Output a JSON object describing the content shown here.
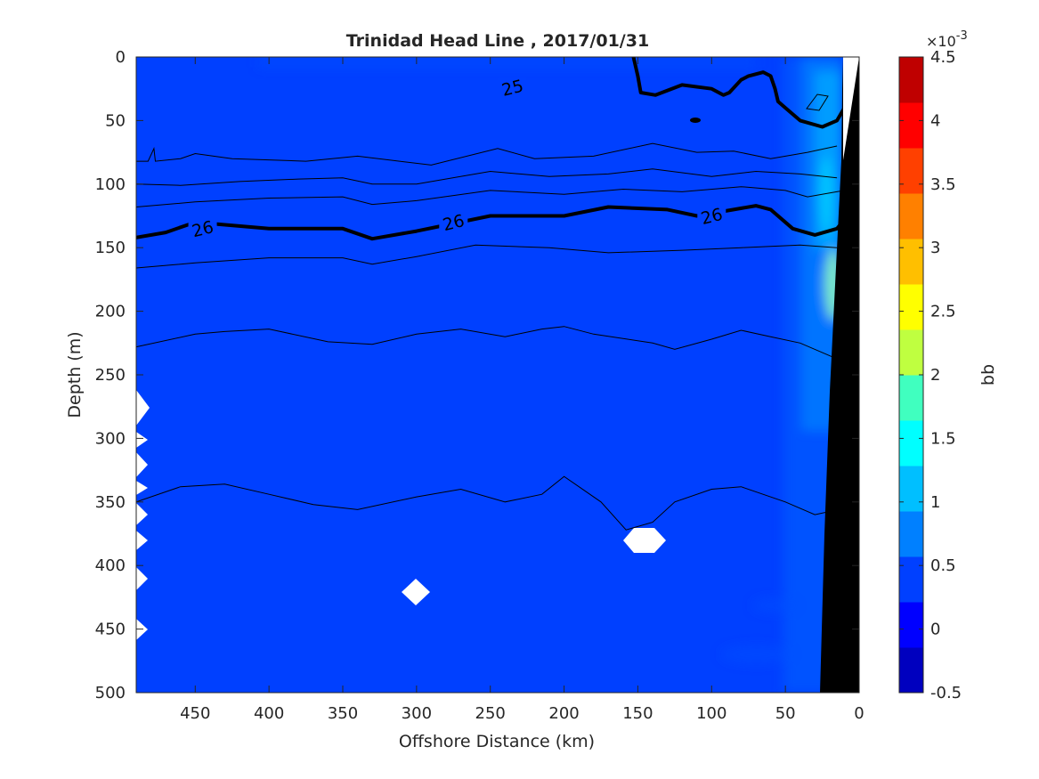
{
  "chart_data": {
    "type": "heatmap",
    "title": "Trinidad Head Line , 2017/01/31",
    "xlabel": "Offshore Distance (km)",
    "ylabel": "Depth (m)",
    "xlim": [
      490,
      0
    ],
    "ylim": [
      0,
      500
    ],
    "x_direction": "reversed",
    "y_direction": "reversed",
    "x_ticks": [
      "450",
      "400",
      "350",
      "300",
      "250",
      "200",
      "150",
      "100",
      "50",
      "0"
    ],
    "y_ticks": [
      "0",
      "50",
      "100",
      "150",
      "200",
      "250",
      "300",
      "350",
      "400",
      "450",
      "500"
    ],
    "background_value": 0.0003,
    "colormap": [
      "#00008F",
      "#0000BF",
      "#0000FF",
      "#0040FF",
      "#0080FF",
      "#00BFFF",
      "#00FFFF",
      "#40FFBF",
      "#80FF80",
      "#BFFF40",
      "#FFFF00",
      "#FFBF00",
      "#FF8000",
      "#FF4000",
      "#FF0000",
      "#BF0000",
      "#800000"
    ],
    "colorbar": {
      "label": "bb",
      "exponent_label": "×10",
      "exponent_power": "-3",
      "range": [
        -0.5,
        4.5
      ],
      "levels": 14,
      "ticks": [
        "4.5",
        "4",
        "3.5",
        "3",
        "2.5",
        "2",
        "1.5",
        "1",
        "0.5",
        "0",
        "-0.5"
      ]
    },
    "density_contours": [
      {
        "value": 25,
        "label": "25",
        "bold": true,
        "label_at": [
          235,
          24
        ],
        "points": [
          [
            153,
            0
          ],
          [
            150,
            15
          ],
          [
            148,
            28
          ],
          [
            138,
            30
          ],
          [
            120,
            22
          ],
          [
            100,
            25
          ],
          [
            92,
            30
          ],
          [
            88,
            28
          ],
          [
            80,
            18
          ],
          [
            75,
            15
          ],
          [
            65,
            12
          ],
          [
            60,
            15
          ],
          [
            57,
            25
          ],
          [
            55,
            35
          ],
          [
            50,
            40
          ],
          [
            40,
            50
          ],
          [
            25,
            55
          ],
          [
            15,
            50
          ],
          [
            10,
            40
          ]
        ]
      },
      {
        "value": 26,
        "label": "26",
        "bold": true,
        "label_at": [
          [
            445,
            135
          ],
          [
            275,
            130
          ],
          [
            100,
            125
          ]
        ],
        "points": [
          [
            490,
            142
          ],
          [
            470,
            138
          ],
          [
            450,
            130
          ],
          [
            400,
            135
          ],
          [
            350,
            135
          ],
          [
            330,
            143
          ],
          [
            300,
            137
          ],
          [
            250,
            125
          ],
          [
            200,
            125
          ],
          [
            170,
            118
          ],
          [
            130,
            120
          ],
          [
            110,
            125
          ],
          [
            70,
            117
          ],
          [
            60,
            120
          ],
          [
            45,
            135
          ],
          [
            30,
            140
          ],
          [
            15,
            135
          ],
          [
            10,
            128
          ]
        ]
      }
    ],
    "thin_contours": [
      [
        [
          490,
          82
        ],
        [
          482,
          82
        ],
        [
          478,
          72
        ],
        [
          477,
          82
        ],
        [
          460,
          80
        ],
        [
          450,
          76
        ],
        [
          425,
          80
        ],
        [
          375,
          82
        ],
        [
          340,
          78
        ],
        [
          290,
          85
        ],
        [
          245,
          72
        ],
        [
          220,
          80
        ],
        [
          180,
          78
        ],
        [
          140,
          68
        ],
        [
          110,
          75
        ],
        [
          85,
          74
        ],
        [
          60,
          80
        ],
        [
          35,
          75
        ],
        [
          15,
          70
        ]
      ],
      [
        [
          490,
          100
        ],
        [
          460,
          101
        ],
        [
          420,
          98
        ],
        [
          380,
          96
        ],
        [
          350,
          95
        ],
        [
          330,
          100
        ],
        [
          300,
          100
        ],
        [
          250,
          90
        ],
        [
          210,
          94
        ],
        [
          170,
          92
        ],
        [
          140,
          88
        ],
        [
          100,
          94
        ],
        [
          70,
          90
        ],
        [
          40,
          92
        ],
        [
          15,
          95
        ]
      ],
      [
        [
          490,
          118
        ],
        [
          450,
          114
        ],
        [
          400,
          111
        ],
        [
          350,
          110
        ],
        [
          330,
          116
        ],
        [
          300,
          113
        ],
        [
          250,
          105
        ],
        [
          200,
          108
        ],
        [
          160,
          104
        ],
        [
          120,
          106
        ],
        [
          80,
          102
        ],
        [
          50,
          105
        ],
        [
          35,
          110
        ],
        [
          10,
          105
        ]
      ],
      [
        [
          490,
          166
        ],
        [
          450,
          162
        ],
        [
          400,
          158
        ],
        [
          350,
          158
        ],
        [
          330,
          163
        ],
        [
          300,
          157
        ],
        [
          260,
          148
        ],
        [
          210,
          150
        ],
        [
          170,
          154
        ],
        [
          120,
          152
        ],
        [
          80,
          150
        ],
        [
          40,
          148
        ],
        [
          15,
          150
        ]
      ],
      [
        [
          490,
          228
        ],
        [
          450,
          218
        ],
        [
          430,
          216
        ],
        [
          400,
          214
        ],
        [
          360,
          224
        ],
        [
          330,
          226
        ],
        [
          300,
          218
        ],
        [
          270,
          214
        ],
        [
          240,
          220
        ],
        [
          215,
          214
        ],
        [
          200,
          212
        ],
        [
          180,
          218
        ],
        [
          140,
          225
        ],
        [
          125,
          230
        ],
        [
          100,
          222
        ],
        [
          80,
          215
        ],
        [
          60,
          220
        ],
        [
          40,
          225
        ],
        [
          20,
          235
        ],
        [
          10,
          240
        ]
      ],
      [
        [
          490,
          350
        ],
        [
          460,
          338
        ],
        [
          430,
          336
        ],
        [
          400,
          344
        ],
        [
          370,
          352
        ],
        [
          340,
          356
        ],
        [
          300,
          346
        ],
        [
          270,
          340
        ],
        [
          240,
          350
        ],
        [
          215,
          344
        ],
        [
          200,
          330
        ],
        [
          175,
          350
        ],
        [
          158,
          372
        ],
        [
          140,
          366
        ],
        [
          125,
          350
        ],
        [
          100,
          340
        ],
        [
          80,
          338
        ],
        [
          50,
          350
        ],
        [
          30,
          360
        ],
        [
          10,
          355
        ]
      ]
    ]
  }
}
